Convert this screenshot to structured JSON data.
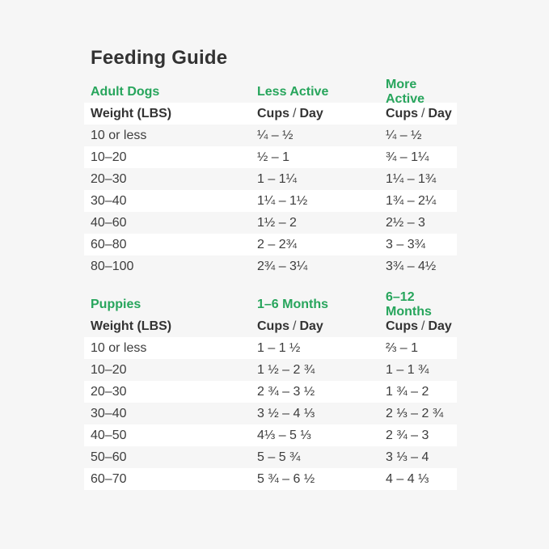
{
  "title": "Feeding Guide",
  "colors": {
    "background": "#f6f6f6",
    "row_highlight": "#ffffff",
    "accent_green": "#27a55c",
    "text_dark": "#333333"
  },
  "header_labels": {
    "weight": "Weight (LBS)",
    "cups": "Cups",
    "slash": "/",
    "day": "Day"
  },
  "sections": [
    {
      "title": "Adult Dogs",
      "col2": "Less Active",
      "col3": "More Active",
      "rows": [
        {
          "weight": "10 or less",
          "col2": "¼ – ½",
          "col3": "¼ – ½"
        },
        {
          "weight": "10–20",
          "col2": "½ – 1",
          "col3": "¾ – 1¼"
        },
        {
          "weight": "20–30",
          "col2": "1 – 1¼",
          "col3": "1¼ – 1¾"
        },
        {
          "weight": "30–40",
          "col2": "1¼ – 1½",
          "col3": "1¾ – 2¼"
        },
        {
          "weight": "40–60",
          "col2": "1½ – 2",
          "col3": "2½ – 3"
        },
        {
          "weight": "60–80",
          "col2": "2 – 2¾",
          "col3": "3 – 3¾"
        },
        {
          "weight": "80–100",
          "col2": "2¾ – 3¼",
          "col3": "3¾ – 4½"
        }
      ]
    },
    {
      "title": "Puppies",
      "col2": "1–6 Months",
      "col3": "6–12 Months",
      "rows": [
        {
          "weight": "10 or less",
          "col2": "1 – 1 ½",
          "col3": "⅔ – 1"
        },
        {
          "weight": "10–20",
          "col2": "1 ½ – 2 ¾",
          "col3": "1 – 1 ¾"
        },
        {
          "weight": "20–30",
          "col2": "2 ¾ – 3 ½",
          "col3": "1 ¾ – 2"
        },
        {
          "weight": "30–40",
          "col2": "3 ½ – 4 ⅓",
          "col3": "2 ⅓ – 2 ¾"
        },
        {
          "weight": "40–50",
          "col2": "4⅓ – 5 ⅓",
          "col3": "2 ¾ – 3"
        },
        {
          "weight": "50–60",
          "col2": "5 – 5 ¾",
          "col3": "3 ⅓ – 4"
        },
        {
          "weight": "60–70",
          "col2": "5 ¾ – 6 ½",
          "col3": "4 – 4 ⅓"
        }
      ]
    }
  ],
  "chart_data": [
    {
      "type": "table",
      "title": "Feeding Guide — Adult Dogs",
      "columns": [
        "Weight (LBS)",
        "Less Active Cups / Day",
        "More Active Cups / Day"
      ],
      "rows": [
        [
          "10 or less",
          "¼ – ½",
          "¼ – ½"
        ],
        [
          "10–20",
          "½ – 1",
          "¾ – 1¼"
        ],
        [
          "20–30",
          "1 – 1¼",
          "1¼ – 1¾"
        ],
        [
          "30–40",
          "1¼ – 1½",
          "1¾ – 2¼"
        ],
        [
          "40–60",
          "1½ – 2",
          "2½ – 3"
        ],
        [
          "60–80",
          "2 – 2¾",
          "3 – 3¾"
        ],
        [
          "80–100",
          "2¾ – 3¼",
          "3¾ – 4½"
        ]
      ]
    },
    {
      "type": "table",
      "title": "Feeding Guide — Puppies",
      "columns": [
        "Weight (LBS)",
        "1–6 Months Cups / Day",
        "6–12 Months Cups / Day"
      ],
      "rows": [
        [
          "10 or less",
          "1 – 1 ½",
          "⅔ – 1"
        ],
        [
          "10–20",
          "1 ½ – 2 ¾",
          "1 – 1 ¾"
        ],
        [
          "20–30",
          "2 ¾ – 3 ½",
          "1 ¾ – 2"
        ],
        [
          "30–40",
          "3 ½ – 4 ⅓",
          "2 ⅓ – 2 ¾"
        ],
        [
          "40–50",
          "4⅓ – 5 ⅓",
          "2 ¾ – 3"
        ],
        [
          "50–60",
          "5 – 5 ¾",
          "3 ⅓ – 4"
        ],
        [
          "60–70",
          "5 ¾ – 6 ½",
          "4 – 4 ⅓"
        ]
      ]
    }
  ]
}
